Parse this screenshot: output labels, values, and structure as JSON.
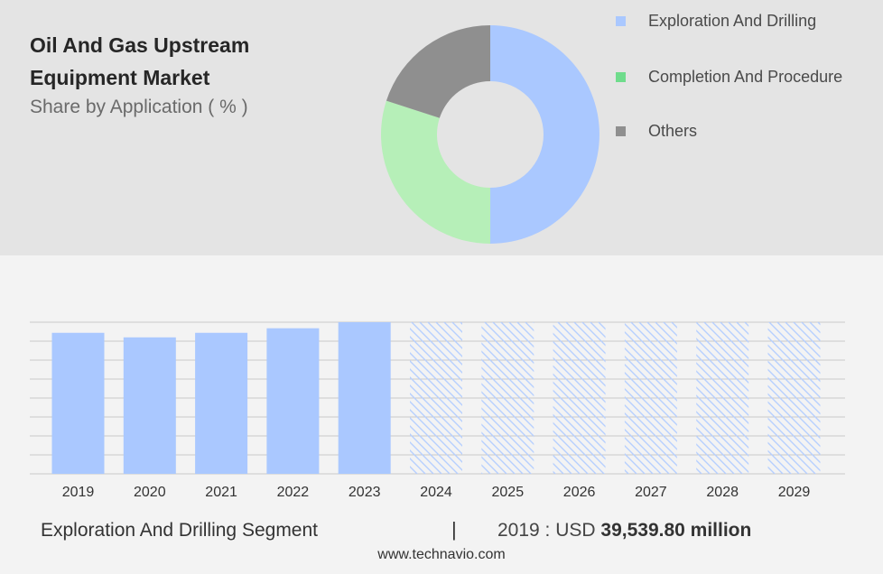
{
  "header": {
    "title": "Oil And Gas Upstream Equipment Market",
    "subtitle": "Share by Application ( % )"
  },
  "colors": {
    "exploration": "#aac8ff",
    "completion": "#b6efb8",
    "completion_legend": "#6fdc8c",
    "others": "#8f8f8f",
    "hatch": "#b6cfff",
    "grid": "#c8c8c8"
  },
  "chart_data": [
    {
      "type": "pie",
      "donut": true,
      "title": "Share by Application ( % )",
      "labels": [
        "Exploration And Drilling",
        "Completion And Procedure",
        "Others"
      ],
      "values": [
        50,
        30,
        20
      ]
    },
    {
      "type": "bar",
      "categories": [
        "2019",
        "2020",
        "2021",
        "2022",
        "2023",
        "2024",
        "2025",
        "2026",
        "2027",
        "2028",
        "2029"
      ],
      "series": [
        {
          "name": "Exploration And Drilling",
          "values": [
            0.93,
            0.9,
            0.93,
            0.96,
            1.0,
            1.0,
            1.0,
            1.0,
            1.0,
            1.0,
            1.0
          ]
        }
      ],
      "forecast_from": "2024",
      "ylim": [
        0,
        1
      ],
      "grid": true
    }
  ],
  "footer": {
    "segment": "Exploration And Drilling Segment",
    "separator": "|",
    "value_prefix": "2019 : USD",
    "value_bold": "39,539.80 million",
    "site": "www.technavio.com"
  }
}
